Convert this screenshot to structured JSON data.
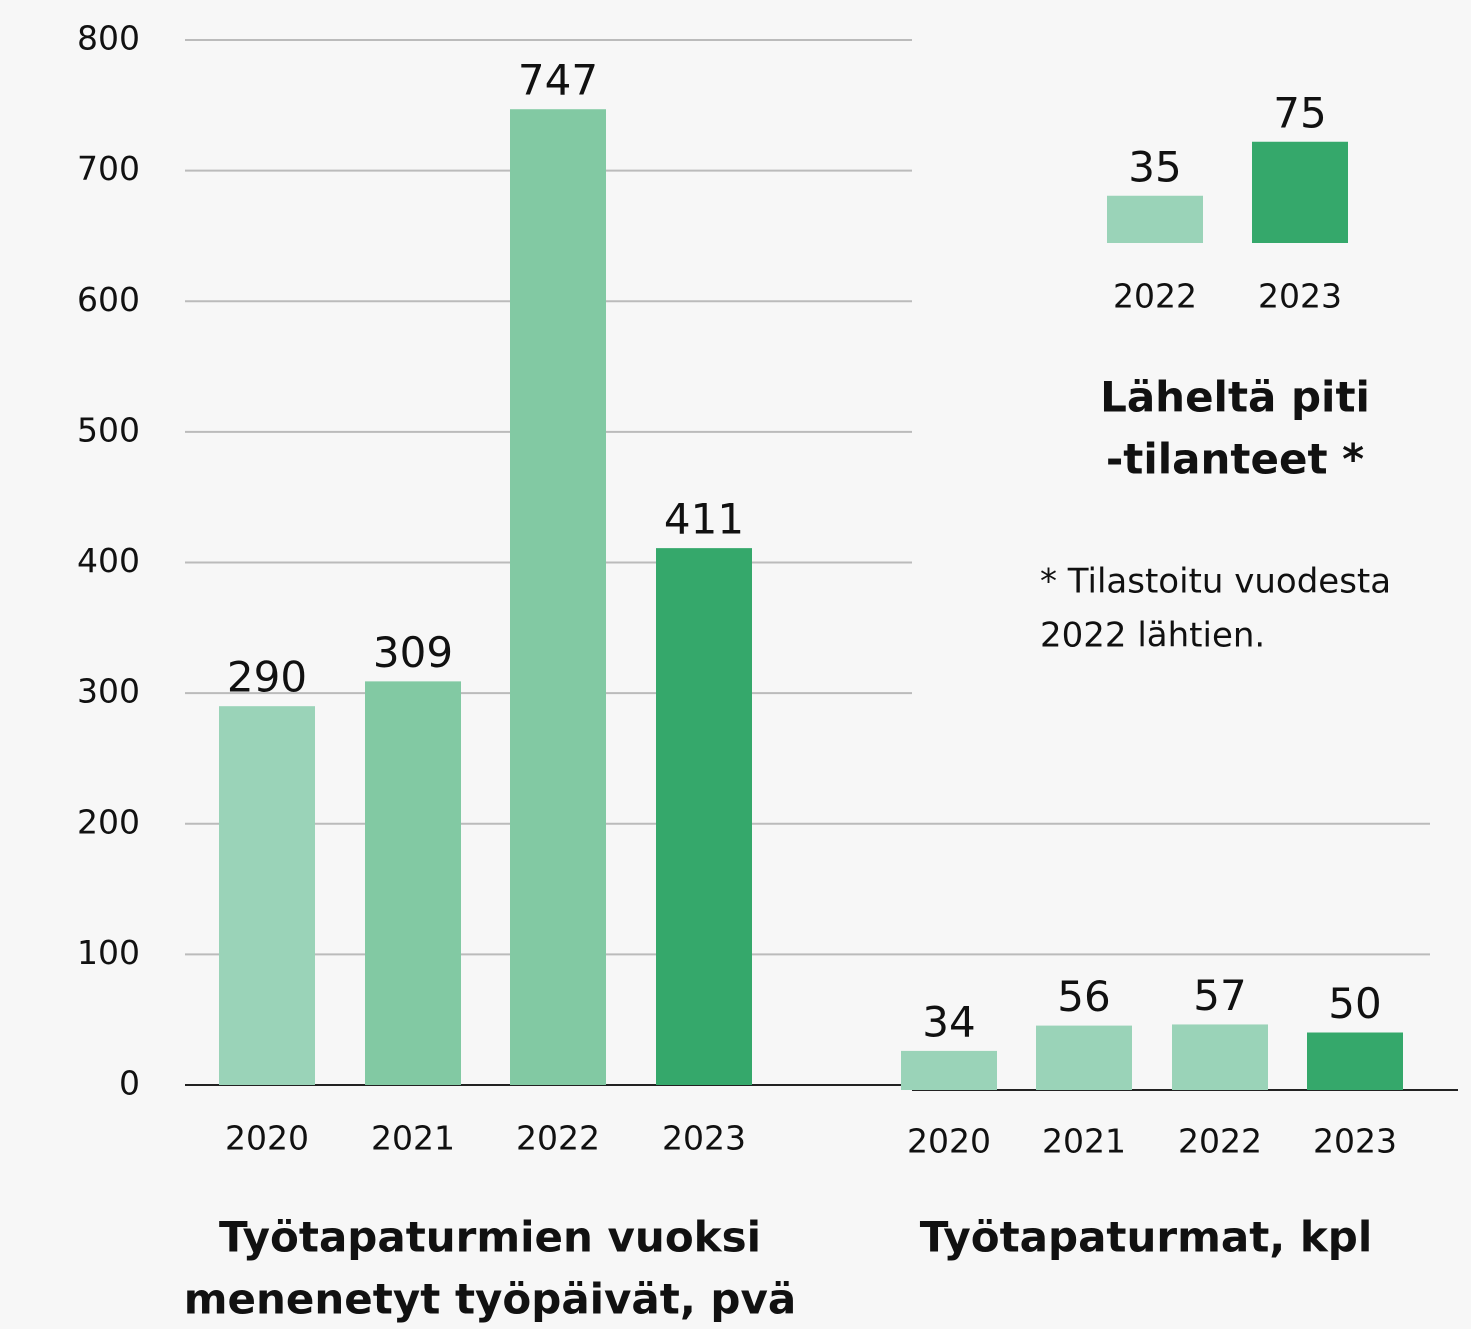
{
  "chart_data": [
    {
      "type": "bar",
      "title": [
        "Työtapaturmien vuoksi",
        "menenetyt työpäivät, pvä"
      ],
      "categories": [
        "2020",
        "2021",
        "2022",
        "2023"
      ],
      "values": [
        290,
        309,
        747,
        411
      ],
      "colors": [
        "#9ad3b8",
        "#82c9a3",
        "#82c9a3",
        "#35a86b"
      ],
      "ylim": [
        0,
        800
      ],
      "yticks": [
        0,
        100,
        200,
        300,
        400,
        500,
        600,
        700,
        800
      ],
      "grid": true
    },
    {
      "type": "bar",
      "title": [
        "Työtapaturmat, kpl"
      ],
      "categories": [
        "2020",
        "2021",
        "2022",
        "2023"
      ],
      "values": [
        34,
        56,
        57,
        50
      ],
      "colors": [
        "#9ad3b8",
        "#9ad3b8",
        "#9ad3b8",
        "#35a86b"
      ]
    },
    {
      "type": "bar",
      "title": [
        "Läheltä piti",
        "-tilanteet *"
      ],
      "note": [
        "* Tilastoitu vuodesta",
        "2022 lähtien."
      ],
      "categories": [
        "2022",
        "2023"
      ],
      "values": [
        35,
        75
      ],
      "colors": [
        "#9ad3b8",
        "#35a86b"
      ]
    }
  ]
}
